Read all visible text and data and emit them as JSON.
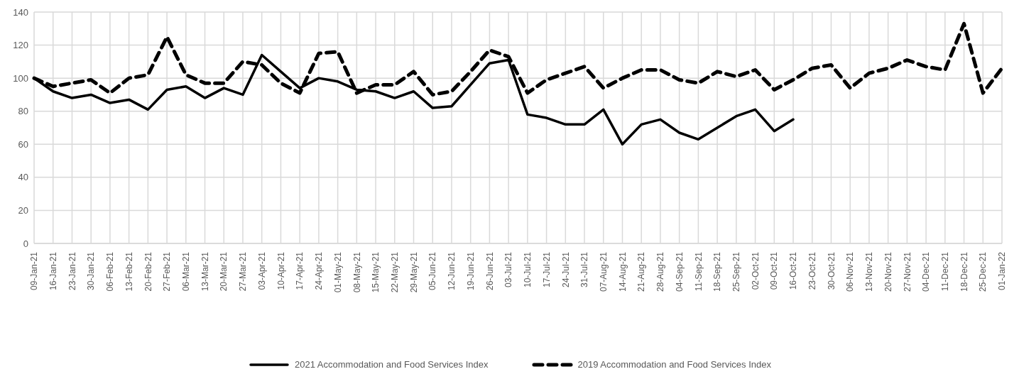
{
  "chart_data": {
    "type": "line",
    "categories": [
      "09-Jan-21",
      "16-Jan-21",
      "23-Jan-21",
      "30-Jan-21",
      "06-Feb-21",
      "13-Feb-21",
      "20-Feb-21",
      "27-Feb-21",
      "06-Mar-21",
      "13-Mar-21",
      "20-Mar-21",
      "27-Mar-21",
      "03-Apr-21",
      "10-Apr-21",
      "17-Apr-21",
      "24-Apr-21",
      "01-May-21",
      "08-May-21",
      "15-May-21",
      "22-May-21",
      "29-May-21",
      "05-Jun-21",
      "12-Jun-21",
      "19-Jun-21",
      "26-Jun-21",
      "03-Jul-21",
      "10-Jul-21",
      "17-Jul-21",
      "24-Jul-21",
      "31-Jul-21",
      "07-Aug-21",
      "14-Aug-21",
      "21-Aug-21",
      "28-Aug-21",
      "04-Sep-21",
      "11-Sep-21",
      "18-Sep-21",
      "25-Sep-21",
      "02-Oct-21",
      "09-Oct-21",
      "16-Oct-21",
      "23-Oct-21",
      "30-Oct-21",
      "06-Nov-21",
      "13-Nov-21",
      "20-Nov-21",
      "27-Nov-21",
      "04-Dec-21",
      "11-Dec-21",
      "18-Dec-21",
      "25-Dec-21",
      "01-Jan-22"
    ],
    "series": [
      {
        "name": "2021 Accommodation and Food Services Index",
        "color": "#000000",
        "line_style": "solid",
        "values": [
          100,
          92,
          88,
          90,
          85,
          87,
          81,
          93,
          95,
          88,
          94,
          90,
          114,
          104,
          94,
          100,
          98,
          93,
          92,
          88,
          92,
          82,
          83,
          96,
          109,
          111,
          78,
          76,
          72,
          72,
          81,
          60,
          72,
          75,
          67,
          63,
          70,
          77,
          81,
          68,
          75,
          null,
          null,
          null,
          null,
          null,
          null,
          null,
          null,
          null,
          null,
          null
        ]
      },
      {
        "name": "2019 Accommodation and Food Services Index",
        "color": "#000000",
        "line_style": "dashed",
        "values": [
          100,
          95,
          97,
          99,
          91,
          100,
          102,
          125,
          102,
          97,
          97,
          110,
          108,
          97,
          91,
          115,
          116,
          91,
          96,
          96,
          104,
          90,
          92,
          104,
          117,
          113,
          91,
          99,
          103,
          107,
          94,
          100,
          105,
          105,
          99,
          97,
          104,
          101,
          105,
          93,
          99,
          106,
          108,
          94,
          103,
          106,
          111,
          107,
          105,
          133,
          91,
          106
        ]
      }
    ],
    "ylim": [
      0,
      140
    ],
    "yticks": [
      0,
      20,
      40,
      60,
      80,
      100,
      120,
      140
    ],
    "grid": true,
    "legend": "bottom",
    "marker": "none"
  }
}
